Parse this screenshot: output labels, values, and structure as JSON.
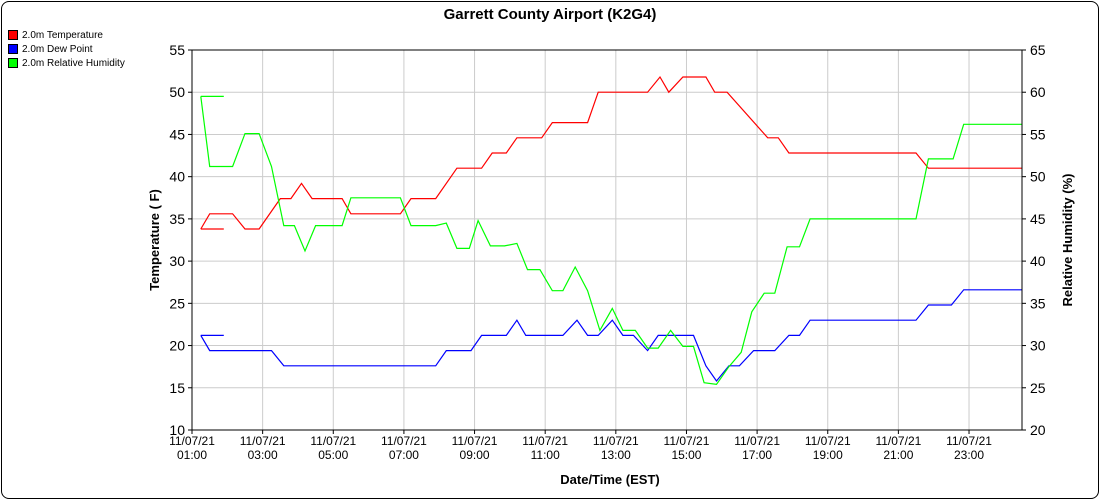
{
  "chart_data": {
    "type": "line",
    "title": "Garrett County Airport (K2G4)",
    "xlabel": "Date/Time (EST)",
    "ylabel": "Temperature ( F)",
    "y2label": "Relative Humidity (%)",
    "xlim": [
      1,
      24.5
    ],
    "ylim": [
      10,
      55
    ],
    "y2lim": [
      20,
      65
    ],
    "grid": true,
    "legend_position": "top-left",
    "x_ticks": [
      {
        "x": 1,
        "line1": "11/07/21",
        "line2": "01:00"
      },
      {
        "x": 3,
        "line1": "11/07/21",
        "line2": "03:00"
      },
      {
        "x": 5,
        "line1": "11/07/21",
        "line2": "05:00"
      },
      {
        "x": 7,
        "line1": "11/07/21",
        "line2": "07:00"
      },
      {
        "x": 9,
        "line1": "11/07/21",
        "line2": "09:00"
      },
      {
        "x": 11,
        "line1": "11/07/21",
        "line2": "11:00"
      },
      {
        "x": 13,
        "line1": "11/07/21",
        "line2": "13:00"
      },
      {
        "x": 15,
        "line1": "11/07/21",
        "line2": "15:00"
      },
      {
        "x": 17,
        "line1": "11/07/21",
        "line2": "17:00"
      },
      {
        "x": 19,
        "line1": "11/07/21",
        "line2": "19:00"
      },
      {
        "x": 21,
        "line1": "11/07/21",
        "line2": "21:00"
      },
      {
        "x": 23,
        "line1": "11/07/21",
        "line2": "23:00"
      }
    ],
    "y_ticks": [
      10,
      15,
      20,
      25,
      30,
      35,
      40,
      45,
      50,
      55
    ],
    "y2_ticks": [
      20,
      25,
      30,
      35,
      40,
      45,
      50,
      55,
      60,
      65
    ],
    "series": [
      {
        "name": "2.0m Temperature",
        "color": "#ff0000",
        "axis": "left",
        "segments": [
          [
            [
              1.25,
              33.8
            ],
            [
              1.9,
              33.8
            ]
          ],
          [
            [
              1.25,
              33.8
            ],
            [
              1.5,
              35.6
            ],
            [
              2.15,
              35.6
            ],
            [
              2.5,
              33.8
            ],
            [
              2.9,
              33.8
            ],
            [
              3.5,
              37.4
            ],
            [
              3.8,
              37.4
            ],
            [
              4.1,
              39.2
            ],
            [
              4.4,
              37.4
            ],
            [
              5.25,
              37.4
            ],
            [
              5.5,
              35.6
            ],
            [
              6.9,
              35.6
            ],
            [
              7.2,
              37.4
            ],
            [
              7.9,
              37.4
            ],
            [
              8.5,
              41.0
            ],
            [
              9.2,
              41.0
            ],
            [
              9.5,
              42.8
            ],
            [
              9.9,
              42.8
            ],
            [
              10.2,
              44.6
            ],
            [
              10.9,
              44.6
            ],
            [
              11.2,
              46.4
            ],
            [
              12.2,
              46.4
            ],
            [
              12.5,
              50.0
            ],
            [
              13.9,
              50.0
            ],
            [
              14.25,
              51.8
            ],
            [
              14.5,
              50.0
            ],
            [
              14.9,
              51.8
            ],
            [
              15.55,
              51.8
            ],
            [
              15.8,
              50.0
            ],
            [
              16.15,
              50.0
            ],
            [
              17.3,
              44.6
            ],
            [
              17.6,
              44.6
            ],
            [
              17.9,
              42.8
            ],
            [
              21.5,
              42.8
            ],
            [
              21.85,
              41.0
            ],
            [
              24.5,
              41.0
            ]
          ]
        ]
      },
      {
        "name": "2.0m Dew Point",
        "color": "#0000ff",
        "axis": "left",
        "segments": [
          [
            [
              1.25,
              21.2
            ],
            [
              1.9,
              21.2
            ]
          ],
          [
            [
              1.25,
              21.2
            ],
            [
              1.5,
              19.4
            ],
            [
              3.25,
              19.4
            ],
            [
              3.6,
              17.6
            ],
            [
              7.9,
              17.6
            ],
            [
              8.2,
              19.4
            ],
            [
              8.9,
              19.4
            ],
            [
              9.2,
              21.2
            ],
            [
              9.9,
              21.2
            ],
            [
              10.2,
              23.0
            ],
            [
              10.45,
              21.2
            ],
            [
              11.5,
              21.2
            ],
            [
              11.9,
              23.0
            ],
            [
              12.2,
              21.2
            ],
            [
              12.5,
              21.2
            ],
            [
              12.9,
              23.0
            ],
            [
              13.2,
              21.2
            ],
            [
              13.5,
              21.2
            ],
            [
              13.9,
              19.4
            ],
            [
              14.2,
              21.2
            ],
            [
              15.2,
              21.2
            ],
            [
              15.55,
              17.6
            ],
            [
              15.85,
              15.8
            ],
            [
              16.2,
              17.6
            ],
            [
              16.5,
              17.6
            ],
            [
              16.9,
              19.4
            ],
            [
              17.5,
              19.4
            ],
            [
              17.9,
              21.2
            ],
            [
              18.2,
              21.2
            ],
            [
              18.5,
              23.0
            ],
            [
              21.5,
              23.0
            ],
            [
              21.85,
              24.8
            ],
            [
              22.5,
              24.8
            ],
            [
              22.85,
              26.6
            ],
            [
              24.5,
              26.6
            ]
          ]
        ]
      },
      {
        "name": "2.0m Relative Humidity",
        "color": "#00ff00",
        "axis": "right",
        "segments": [
          [
            [
              1.25,
              59.5
            ],
            [
              1.9,
              59.5
            ]
          ],
          [
            [
              1.25,
              59.5
            ],
            [
              1.5,
              51.2
            ],
            [
              2.15,
              51.2
            ],
            [
              2.5,
              55.1
            ],
            [
              2.9,
              55.1
            ],
            [
              3.25,
              51.2
            ],
            [
              3.6,
              44.2
            ],
            [
              3.9,
              44.2
            ],
            [
              4.2,
              41.2
            ],
            [
              4.5,
              44.2
            ],
            [
              5.25,
              44.2
            ],
            [
              5.5,
              47.5
            ],
            [
              6.9,
              47.5
            ],
            [
              7.2,
              44.2
            ],
            [
              7.9,
              44.2
            ],
            [
              8.2,
              44.5
            ],
            [
              8.5,
              41.5
            ],
            [
              8.85,
              41.5
            ],
            [
              9.1,
              44.8
            ],
            [
              9.45,
              41.8
            ],
            [
              9.85,
              41.8
            ],
            [
              10.2,
              42.1
            ],
            [
              10.5,
              39.0
            ],
            [
              10.85,
              39.0
            ],
            [
              11.2,
              36.5
            ],
            [
              11.5,
              36.5
            ],
            [
              11.85,
              39.3
            ],
            [
              12.2,
              36.5
            ],
            [
              12.55,
              31.8
            ],
            [
              12.9,
              34.4
            ],
            [
              13.2,
              31.8
            ],
            [
              13.55,
              31.8
            ],
            [
              13.9,
              29.7
            ],
            [
              14.2,
              29.7
            ],
            [
              14.55,
              31.8
            ],
            [
              14.9,
              29.9
            ],
            [
              15.2,
              29.9
            ],
            [
              15.5,
              25.6
            ],
            [
              15.85,
              25.4
            ],
            [
              16.2,
              27.5
            ],
            [
              16.55,
              29.2
            ],
            [
              16.85,
              34.0
            ],
            [
              17.2,
              36.2
            ],
            [
              17.5,
              36.2
            ],
            [
              17.85,
              41.7
            ],
            [
              18.2,
              41.7
            ],
            [
              18.5,
              45.0
            ],
            [
              21.5,
              45.0
            ],
            [
              21.85,
              52.1
            ],
            [
              22.55,
              52.1
            ],
            [
              22.85,
              56.2
            ],
            [
              24.5,
              56.2
            ]
          ]
        ]
      }
    ]
  }
}
